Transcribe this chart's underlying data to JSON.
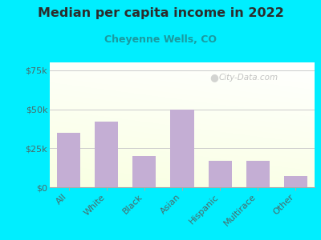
{
  "title": "Median per capita income in 2022",
  "subtitle": "Cheyenne Wells, CO",
  "categories": [
    "All",
    "White",
    "Black",
    "Asian",
    "Hispanic",
    "Multirace",
    "Other"
  ],
  "values": [
    35000,
    42000,
    20000,
    50000,
    17000,
    17000,
    7000
  ],
  "bar_color": "#c4aed4",
  "background_outer": "#00eeff",
  "title_color": "#2c2c2c",
  "subtitle_color": "#1a9aa0",
  "tick_color": "#4a6a6a",
  "ylim": [
    0,
    80000
  ],
  "yticks": [
    0,
    25000,
    50000,
    75000
  ],
  "ytick_labels": [
    "$0",
    "$25k",
    "$50k",
    "$75k"
  ],
  "watermark": "City-Data.com",
  "grid_color": "#cccccc"
}
